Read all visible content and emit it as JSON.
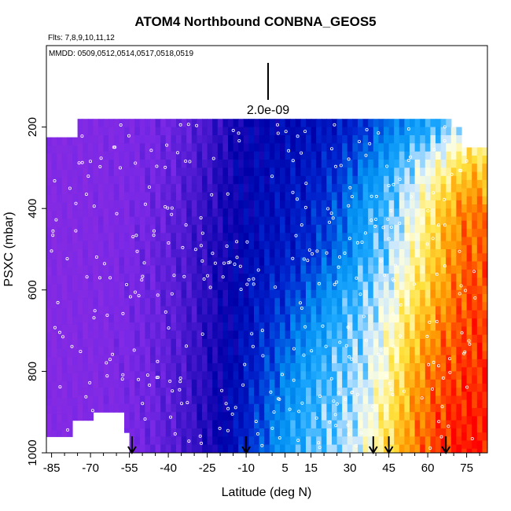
{
  "header": {
    "title": "ATOM4 Northbound CONBNA_GEOS5",
    "flights": "Flts: 7,8,9,10,11,12",
    "dates": "MMDD: 0509,0512,0514,0517,0518,0519"
  },
  "chart_data": {
    "type": "heatmap",
    "title": "ATOM4 Northbound CONBNA_GEOS5",
    "xlabel": "Latitude (deg N)",
    "ylabel": "PSXC (mbar)",
    "xlim": [
      -87,
      83
    ],
    "ylim": [
      1000,
      0
    ],
    "x_ticks": [
      -85,
      -70,
      -55,
      -40,
      -25,
      -10,
      5,
      15,
      30,
      45,
      60,
      75
    ],
    "x_tick_labels": [
      "-85",
      "-70",
      "-55",
      "-40",
      "-25",
      "-10",
      "5",
      "15",
      "30",
      "45",
      "60",
      "75"
    ],
    "x_minor_ticks": [
      -80,
      -75,
      -65,
      -60,
      -50,
      -45,
      -35,
      -30,
      -20,
      -15,
      -5,
      0,
      10,
      20,
      25,
      35,
      40,
      50,
      55,
      65,
      70,
      80
    ],
    "y_ticks": [
      200,
      400,
      600,
      800,
      1000
    ],
    "y_tick_labels": [
      "200",
      "400",
      "600",
      "800",
      "1000"
    ],
    "scale_bar": {
      "label": "2.0e-09"
    },
    "flight_markers_lat": [
      -54,
      -10,
      39,
      45,
      67
    ],
    "colors": {
      "low": "#8a2be2",
      "mid_low": "#0000a8",
      "mid": "#1ea0ff",
      "pale": "#e8f4ff",
      "warm": "#ffd700",
      "high": "#ff0000"
    },
    "pressure_levels": [
      200,
      300,
      400,
      500,
      600,
      700,
      800,
      900,
      1000
    ],
    "latitude_bands": [
      -85,
      -75,
      -65,
      -55,
      -45,
      -35,
      -25,
      -15,
      -5,
      5,
      15,
      25,
      35,
      45,
      55,
      65,
      75
    ],
    "concentration_index": [
      [
        0.04,
        0.05,
        0.06,
        0.08,
        0.1,
        0.14,
        0.2,
        0.28,
        0.32,
        0.34,
        0.36,
        0.38,
        0.42,
        0.5,
        0.56,
        0.6,
        0.7
      ],
      [
        0.04,
        0.05,
        0.06,
        0.08,
        0.11,
        0.16,
        0.22,
        0.3,
        0.34,
        0.36,
        0.38,
        0.42,
        0.5,
        0.58,
        0.66,
        0.74,
        0.82
      ],
      [
        0.04,
        0.05,
        0.06,
        0.08,
        0.12,
        0.17,
        0.24,
        0.3,
        0.35,
        0.37,
        0.4,
        0.46,
        0.56,
        0.62,
        0.7,
        0.82,
        0.9
      ],
      [
        0.04,
        0.05,
        0.06,
        0.09,
        0.13,
        0.18,
        0.25,
        0.31,
        0.36,
        0.38,
        0.42,
        0.48,
        0.58,
        0.64,
        0.74,
        0.84,
        0.92
      ],
      [
        0.04,
        0.05,
        0.06,
        0.09,
        0.13,
        0.18,
        0.25,
        0.32,
        0.38,
        0.42,
        0.48,
        0.56,
        0.62,
        0.68,
        0.78,
        0.86,
        0.94
      ],
      [
        0.04,
        0.05,
        0.06,
        0.09,
        0.13,
        0.18,
        0.26,
        0.33,
        0.4,
        0.46,
        0.54,
        0.6,
        0.64,
        0.72,
        0.82,
        0.9,
        0.95
      ],
      [
        0.04,
        0.05,
        0.06,
        0.09,
        0.13,
        0.19,
        0.26,
        0.34,
        0.42,
        0.5,
        0.58,
        0.62,
        0.66,
        0.74,
        0.86,
        0.93,
        0.96
      ],
      [
        0.04,
        0.05,
        0.06,
        0.09,
        0.13,
        0.19,
        0.27,
        0.35,
        0.44,
        0.54,
        0.6,
        0.63,
        0.68,
        0.78,
        0.88,
        0.95,
        0.98
      ],
      [
        0.04,
        0.05,
        0.06,
        0.09,
        0.13,
        0.19,
        0.27,
        0.36,
        0.46,
        0.56,
        0.62,
        0.64,
        0.7,
        0.8,
        0.9,
        0.96,
        0.99
      ]
    ]
  }
}
